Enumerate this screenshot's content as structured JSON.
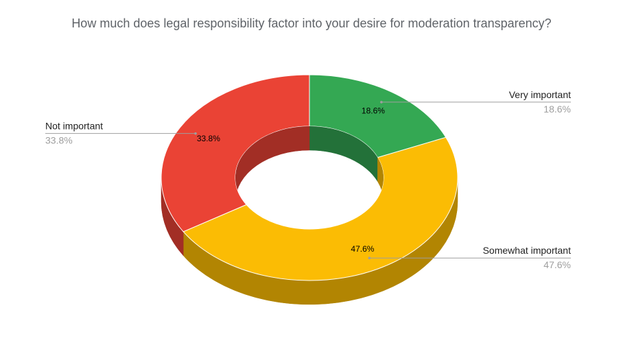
{
  "chart_data": {
    "type": "pie",
    "title": "How much does legal responsibility factor into your desire for moderation transparency?",
    "donut": true,
    "three_d": true,
    "slices": [
      {
        "label": "Very important",
        "value": 18.6,
        "value_label": "18.6%",
        "color": "#34a853",
        "side_color": "#237139"
      },
      {
        "label": "Somewhat important",
        "value": 47.6,
        "value_label": "47.6%",
        "color": "#fbbc04",
        "side_color": "#b28502"
      },
      {
        "label": "Not important",
        "value": 33.8,
        "value_label": "33.8%",
        "color": "#ea4335",
        "side_color": "#a22e25"
      }
    ],
    "legend_placement": "callouts"
  }
}
